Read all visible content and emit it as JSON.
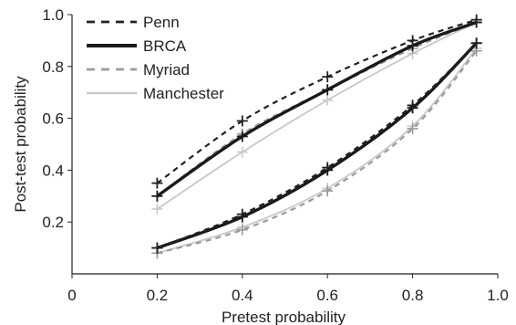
{
  "chart_data": {
    "type": "line",
    "title": "",
    "xlabel": "Pretest probability",
    "ylabel": "Post-test probability",
    "xlim": [
      0,
      1.0
    ],
    "ylim": [
      0,
      1.0
    ],
    "x_ticks": [
      "0",
      "0.2",
      "0.4",
      "0.6",
      "0.8",
      "1.0"
    ],
    "y_ticks": [
      "0.2",
      "0.4",
      "0.6",
      "0.8",
      "1.0"
    ],
    "grid": false,
    "legend_position": "top-left",
    "x": [
      0.2,
      0.4,
      0.6,
      0.8,
      0.95
    ],
    "series": [
      {
        "name": "Penn",
        "style": "dashed",
        "color": "#222222",
        "group": "positive",
        "values": [
          0.35,
          0.59,
          0.76,
          0.9,
          0.98
        ]
      },
      {
        "name": "Penn",
        "style": "dashed",
        "color": "#222222",
        "group": "negative",
        "values": [
          0.1,
          0.23,
          0.41,
          0.65,
          0.89
        ]
      },
      {
        "name": "BRCA",
        "style": "solid-thick",
        "color": "#1a1a1a",
        "group": "positive",
        "values": [
          0.3,
          0.53,
          0.71,
          0.88,
          0.97
        ]
      },
      {
        "name": "BRCA",
        "style": "solid-thick",
        "color": "#1a1a1a",
        "group": "negative",
        "values": [
          0.1,
          0.22,
          0.4,
          0.64,
          0.89
        ]
      },
      {
        "name": "Myriad",
        "style": "dashed-gray",
        "color": "#9a9a9a",
        "group": "positive",
        "values": [
          0.3,
          0.54,
          0.71,
          0.87,
          0.97
        ]
      },
      {
        "name": "Myriad",
        "style": "dashed-gray",
        "color": "#9a9a9a",
        "group": "negative",
        "values": [
          0.08,
          0.17,
          0.32,
          0.56,
          0.86
        ]
      },
      {
        "name": "Manchester",
        "style": "solid-light",
        "color": "#c8c8c8",
        "group": "positive",
        "values": [
          0.25,
          0.47,
          0.67,
          0.85,
          0.97
        ]
      },
      {
        "name": "Manchester",
        "style": "solid-light",
        "color": "#c8c8c8",
        "group": "negative",
        "values": [
          0.08,
          0.18,
          0.33,
          0.57,
          0.87
        ]
      }
    ],
    "legend": [
      {
        "name": "Penn",
        "style": "dashed",
        "color": "#222222"
      },
      {
        "name": "BRCA",
        "style": "solid-thick",
        "color": "#1a1a1a"
      },
      {
        "name": "Myriad",
        "style": "dashed-gray",
        "color": "#9a9a9a"
      },
      {
        "name": "Manchester",
        "style": "solid-light",
        "color": "#c8c8c8"
      }
    ]
  }
}
